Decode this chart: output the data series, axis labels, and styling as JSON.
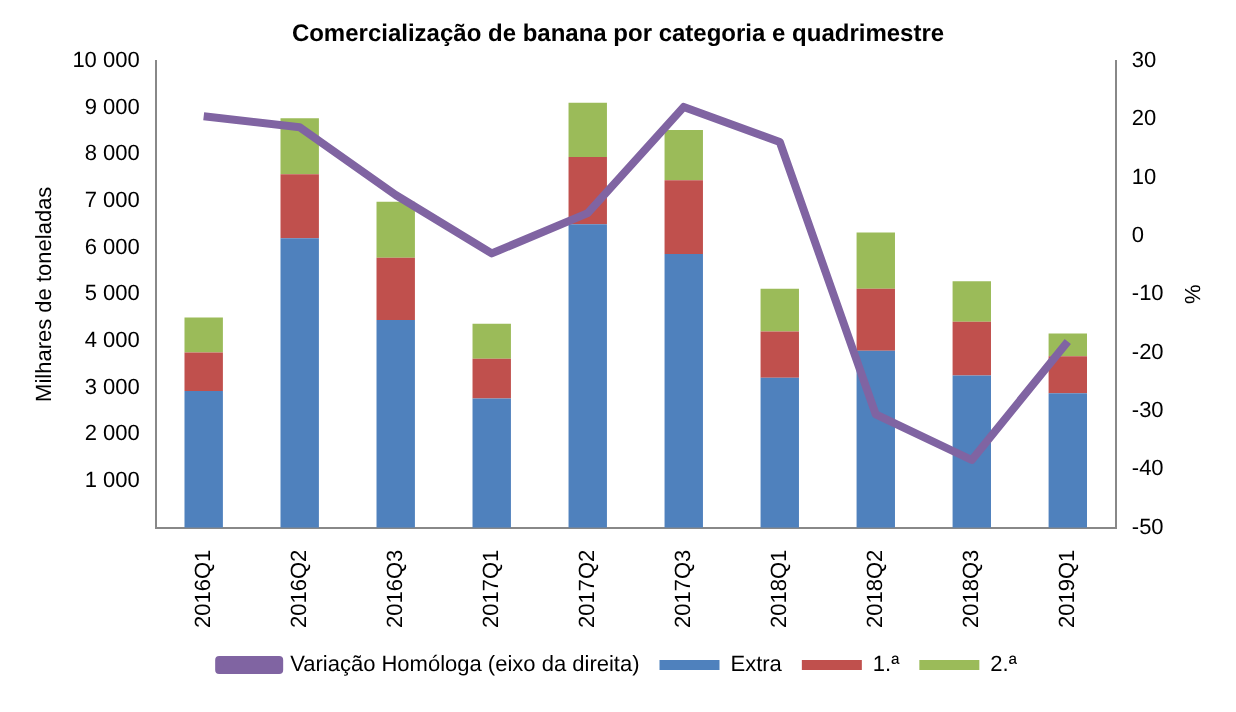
{
  "chart_data": {
    "type": "bar",
    "title": "Comercialização de banana por categoria e quadrimestre",
    "ylabel": "Milhares de toneladas",
    "y2label": "%",
    "stacked": true,
    "categories": [
      "2016Q1",
      "2016Q2",
      "2016Q3",
      "2017Q1",
      "2017Q2",
      "2017Q3",
      "2018Q1",
      "2018Q2",
      "2018Q3",
      "2019Q1"
    ],
    "series": [
      {
        "name": "Extra",
        "color": "#4f81bd",
        "values": [
          2930,
          6200,
          4450,
          2770,
          6500,
          5860,
          3210,
          3790,
          3260,
          2880
        ]
      },
      {
        "name": "1.ª",
        "color": "#c0504d",
        "values": [
          820,
          1370,
          1330,
          850,
          1440,
          1580,
          990,
          1330,
          1150,
          790
        ]
      },
      {
        "name": "2.ª",
        "color": "#9bbb59",
        "values": [
          750,
          1200,
          1200,
          750,
          1160,
          1080,
          920,
          1200,
          870,
          490
        ]
      },
      {
        "name": "Variação Homóloga (eixo da direita)",
        "type": "line",
        "axis": "y2",
        "color": "#8064a2",
        "values": [
          20.5,
          18.6,
          7.0,
          -3.0,
          3.9,
          22.1,
          16.1,
          -30.6,
          -38.4,
          -18.1
        ]
      }
    ],
    "ylim": [
      0,
      10000
    ],
    "yticks": [
      {
        "value": 0,
        "label": null
      },
      {
        "value": 1000,
        "label": "1 000"
      },
      {
        "value": 2000,
        "label": "2 000"
      },
      {
        "value": 3000,
        "label": "3 000"
      },
      {
        "value": 4000,
        "label": "4 000"
      },
      {
        "value": 5000,
        "label": "5 000"
      },
      {
        "value": 6000,
        "label": "6 000"
      },
      {
        "value": 7000,
        "label": "7 000"
      },
      {
        "value": 8000,
        "label": "8 000"
      },
      {
        "value": 9000,
        "label": "9 000"
      },
      {
        "value": 10000,
        "label": "10 000"
      }
    ],
    "y2lim": [
      -50,
      30
    ],
    "y2ticks": [
      -50,
      -40,
      -30,
      -20,
      -10,
      0,
      10,
      20,
      30
    ],
    "grid": false,
    "legend": "bottom",
    "marker": "none"
  }
}
